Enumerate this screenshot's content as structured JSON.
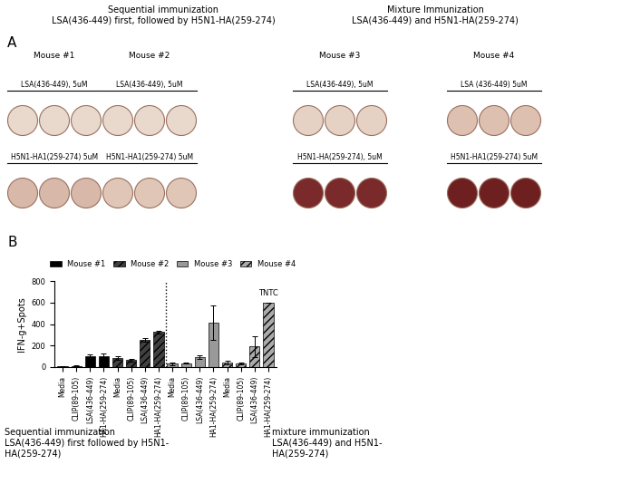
{
  "panel_a": {
    "label": "A",
    "groups": [
      {
        "title": "Sequential immunization\nLSA(436-449) first, followed by H5N1-HA(259-274)",
        "mice": [
          {
            "name": "Mouse #1",
            "rows": [
              "LSA(436-449), 5uM",
              "H5N1-HA1(259-274) 5uM"
            ]
          },
          {
            "name": "Mouse #2",
            "rows": [
              "LSA(436-449), 5uM",
              "H5N1-HA1(259-274) 5uM"
            ]
          }
        ]
      },
      {
        "title": "Mixture Immunization\nLSA(436-449) and H5N1-HA(259-274)",
        "mice": [
          {
            "name": "Mouse #3",
            "rows": [
              "LSA(436-449), 5uM",
              "H5N1-HA(259-274), 5uM"
            ]
          },
          {
            "name": "Mouse #4",
            "rows": [
              "LSA (436-449) 5uM",
              "H5N1-HA1(259-274) 5uM"
            ]
          }
        ]
      }
    ]
  },
  "panel_b_label": "B",
  "captions": [
    "Sequential immunization\nLSA(436-449) first followed by H5N1-\nHA(259-274)",
    "mixture immunization\nLSA(436-449) and H5N1-\nHA(259-274)"
  ],
  "chart_data": {
    "type": "bar",
    "y_label": "IFN-g+Spots",
    "categories": [
      "Media",
      "CLIP(89-105)",
      "LSA(436-449)",
      "HA1-HA(259-274)",
      "Media",
      "CLIP(89-105)",
      "LSA(436-449)",
      "HA1-HA(259-274)",
      "Media",
      "CLIP(89-105)",
      "LSA(436-449)",
      "HA1-HA(259-274)",
      "Media",
      "CLIP(89-105)",
      "LSA(436-449)",
      "HA1-HA(259-274)"
    ],
    "series": [
      {
        "name": "Mouse #1",
        "color": "#000000",
        "values": [
          5,
          10,
          105,
          105,
          null,
          null,
          null,
          null,
          null,
          null,
          null,
          null,
          null,
          null,
          null,
          null
        ],
        "errors": [
          3,
          5,
          10,
          20,
          null,
          null,
          null,
          null,
          null,
          null,
          null,
          null,
          null,
          null,
          null,
          null
        ]
      },
      {
        "name": "Mouse #2",
        "color": "#404040",
        "values": [
          null,
          null,
          null,
          null,
          85,
          65,
          255,
          325,
          null,
          null,
          null,
          null,
          null,
          null,
          null,
          null
        ],
        "errors": [
          null,
          null,
          null,
          null,
          20,
          15,
          15,
          15,
          null,
          null,
          null,
          null,
          null,
          null,
          null,
          null
        ]
      },
      {
        "name": "Mouse #3",
        "color": "#999999",
        "values": [
          null,
          null,
          null,
          null,
          null,
          null,
          null,
          null,
          30,
          35,
          95,
          415,
          null,
          null,
          null,
          null
        ],
        "errors": [
          null,
          null,
          null,
          null,
          null,
          null,
          null,
          null,
          10,
          5,
          15,
          160,
          null,
          null,
          null,
          null
        ]
      },
      {
        "name": "Mouse #4",
        "color": "#aaaaaa",
        "values": [
          null,
          null,
          null,
          null,
          null,
          null,
          null,
          null,
          null,
          null,
          null,
          null,
          40,
          35,
          190,
          600
        ],
        "errors": [
          null,
          null,
          null,
          null,
          null,
          null,
          null,
          null,
          null,
          null,
          null,
          null,
          15,
          10,
          95,
          0
        ]
      }
    ],
    "annotations": [
      {
        "text": "TNTC",
        "category_index": 15
      }
    ],
    "ylim": [
      0,
      800
    ],
    "yticks": [
      0,
      200,
      400,
      600,
      800
    ],
    "legend": "upper left"
  }
}
